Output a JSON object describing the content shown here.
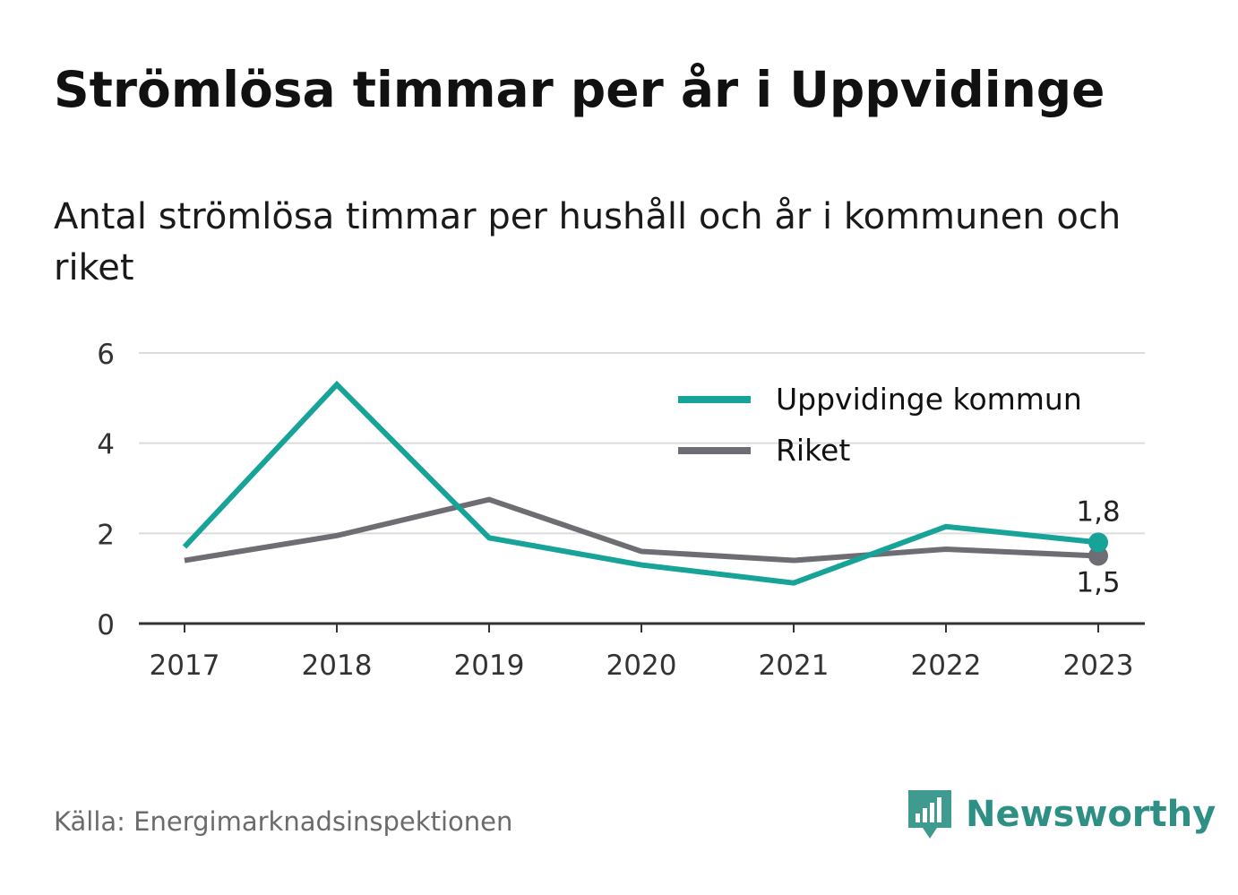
{
  "header": {
    "title": "Strömlösa timmar per år i Uppvidinge",
    "subtitle": "Antal strömlösa timmar per hushåll och år i kommunen och riket"
  },
  "footer": {
    "source": "Källa: Energimarknadsinspektionen",
    "brand": "Newsworthy"
  },
  "colors": {
    "kommun": "#17a398",
    "riket": "#6e6d73",
    "grid": "#dcdcdc",
    "axis": "#333333",
    "brand": "#2e8f85"
  },
  "chart_data": {
    "type": "line",
    "title": "Strömlösa timmar per år i Uppvidinge",
    "subtitle": "Antal strömlösa timmar per hushåll och år i kommunen och riket",
    "x": [
      "2017",
      "2018",
      "2019",
      "2020",
      "2021",
      "2022",
      "2023"
    ],
    "ylim": [
      0,
      6
    ],
    "yticks": [
      "0",
      "2",
      "4",
      "6"
    ],
    "grid": true,
    "legend_position": "top-right",
    "series": [
      {
        "name": "Uppvidinge kommun",
        "values": [
          1.7,
          5.3,
          1.9,
          1.3,
          0.9,
          2.15,
          1.8
        ],
        "end_label": "1,8",
        "color": "#17a398"
      },
      {
        "name": "Riket",
        "values": [
          1.4,
          1.95,
          2.75,
          1.6,
          1.4,
          1.65,
          1.5
        ],
        "end_label": "1,5",
        "color": "#6e6d73"
      }
    ]
  }
}
